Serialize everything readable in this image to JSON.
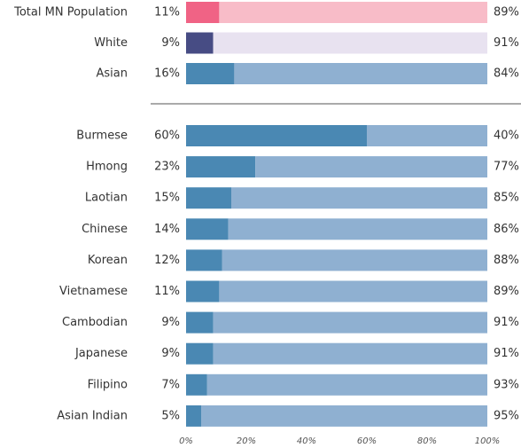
{
  "chart_data": {
    "type": "stacked-bar-horizontal",
    "categories": [
      "Total MN Population",
      "White",
      "Asian",
      "Burmese",
      "Hmong",
      "Laotian",
      "Chinese",
      "Korean",
      "Vietnamese",
      "Cambodian",
      "Japanese",
      "Filipino",
      "Asian Indian"
    ],
    "series": [
      {
        "values": [
          11,
          9,
          16,
          60,
          23,
          15,
          14,
          12,
          11,
          9,
          9,
          7,
          5
        ],
        "value_labels": [
          "11%",
          "9%",
          "16%",
          "60%",
          "23%",
          "15%",
          "14%",
          "12%",
          "11%",
          "9%",
          "9%",
          "7%",
          "5%"
        ],
        "colors": [
          "#f06385",
          "#474c84",
          "#4a88b3",
          "#4a88b3",
          "#4a88b3",
          "#4a88b3",
          "#4a88b3",
          "#4a88b3",
          "#4a88b3",
          "#4a88b3",
          "#4a88b3",
          "#4a88b3",
          "#4a88b3"
        ]
      },
      {
        "values": [
          89,
          91,
          84,
          40,
          77,
          85,
          86,
          88,
          89,
          91,
          91,
          93,
          95
        ],
        "value_labels": [
          "89%",
          "91%",
          "84%",
          "40%",
          "77%",
          "85%",
          "86%",
          "88%",
          "89%",
          "91%",
          "91%",
          "93%",
          "95%"
        ],
        "colors": [
          "#f8bcc8",
          "#e8e2f0",
          "#8fb0d1",
          "#8fb0d1",
          "#8fb0d1",
          "#8fb0d1",
          "#8fb0d1",
          "#8fb0d1",
          "#8fb0d1",
          "#8fb0d1",
          "#8fb0d1",
          "#8fb0d1",
          "#8fb0d1"
        ]
      }
    ],
    "xlim": [
      0,
      100
    ],
    "xticks": [
      {
        "value": 0,
        "label": "0%"
      },
      {
        "value": 20,
        "label": "20%"
      },
      {
        "value": 40,
        "label": "40%"
      },
      {
        "value": 60,
        "label": "60%"
      },
      {
        "value": 80,
        "label": "80%"
      },
      {
        "value": 100,
        "label": "100%"
      }
    ]
  }
}
